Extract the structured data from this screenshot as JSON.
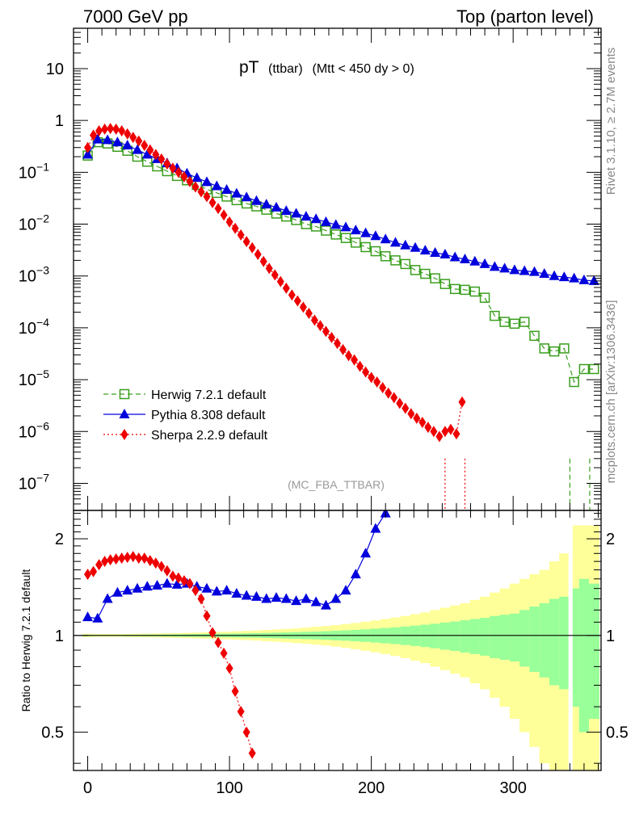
{
  "header": {
    "left": "7000 GeV pp",
    "right": "Top (parton level)"
  },
  "side_labels": {
    "rivet": "Rivet 3.1.10, ≥ 2.7M events",
    "mcplots": "mcplots.cern.ch [arXiv:1306.3436]"
  },
  "chart_data": [
    {
      "type": "scatter",
      "panel": "main",
      "title": "pT",
      "subtitle": "(ttbar)",
      "selection": "(Mtt < 450 dy > 0)",
      "watermark": "(MC_FBA_TTBAR)",
      "yscale": "log",
      "xlim": [
        -10,
        362
      ],
      "ylim": [
        3e-08,
        60
      ],
      "yticks": [
        10,
        1,
        0.1,
        0.01,
        0.001,
        0.0001,
        1e-05,
        1e-06,
        1e-07
      ],
      "ytick_labels": [
        {
          "m": "10",
          "e": ""
        },
        {
          "m": "1",
          "e": ""
        },
        {
          "m": "10",
          "e": "−1"
        },
        {
          "m": "10",
          "e": "−2"
        },
        {
          "m": "10",
          "e": "−3"
        },
        {
          "m": "10",
          "e": "−4"
        },
        {
          "m": "10",
          "e": "−5"
        },
        {
          "m": "10",
          "e": "−6"
        },
        {
          "m": "10",
          "e": "−7"
        }
      ],
      "legend_position": "bottom-left",
      "series": [
        {
          "name": "Herwig 7.2.1 default",
          "color": "#3a9e1e",
          "marker": "open-square",
          "line": "dashed",
          "x": [
            0,
            7,
            14,
            21,
            28,
            35,
            42,
            49,
            56,
            63,
            70,
            77,
            84,
            91,
            98,
            105,
            112,
            119,
            126,
            133,
            140,
            147,
            154,
            161,
            168,
            175,
            182,
            189,
            196,
            203,
            210,
            217,
            224,
            231,
            238,
            245,
            252,
            259,
            266,
            273,
            280,
            287,
            294,
            301,
            308,
            315,
            322,
            329,
            336,
            343,
            350,
            357
          ],
          "y": [
            0.21,
            0.38,
            0.36,
            0.31,
            0.26,
            0.2,
            0.16,
            0.13,
            0.105,
            0.085,
            0.07,
            0.057,
            0.047,
            0.04,
            0.034,
            0.029,
            0.025,
            0.022,
            0.019,
            0.016,
            0.014,
            0.012,
            0.01,
            0.009,
            0.0075,
            0.0063,
            0.0054,
            0.0044,
            0.0036,
            0.003,
            0.0024,
            0.002,
            0.0017,
            0.0013,
            0.0011,
            0.0009,
            0.0007,
            0.00056,
            0.00054,
            0.0005,
            0.00038,
            0.00017,
            0.00013,
            0.00012,
            0.00013,
            7e-05,
            4e-05,
            3.5e-05,
            4e-05,
            9e-06,
            1.6e-05,
            1.6e-05
          ]
        },
        {
          "name": "Pythia 8.308 default",
          "color": "#0000dd",
          "marker": "triangle",
          "line": "solid",
          "x": [
            0,
            7,
            14,
            21,
            28,
            35,
            42,
            49,
            56,
            63,
            70,
            77,
            84,
            91,
            98,
            105,
            112,
            119,
            126,
            133,
            140,
            147,
            154,
            161,
            168,
            175,
            182,
            189,
            196,
            203,
            210,
            217,
            224,
            231,
            238,
            245,
            252,
            259,
            266,
            273,
            280,
            287,
            294,
            301,
            308,
            315,
            322,
            329,
            336,
            343,
            350,
            357
          ],
          "y": [
            0.22,
            0.43,
            0.42,
            0.38,
            0.33,
            0.27,
            0.22,
            0.18,
            0.15,
            0.12,
            0.095,
            0.078,
            0.065,
            0.054,
            0.046,
            0.039,
            0.033,
            0.028,
            0.024,
            0.021,
            0.018,
            0.016,
            0.014,
            0.0125,
            0.011,
            0.0097,
            0.0087,
            0.0076,
            0.0067,
            0.0059,
            0.0051,
            0.0044,
            0.0039,
            0.0035,
            0.0031,
            0.0028,
            0.0026,
            0.0023,
            0.0021,
            0.0019,
            0.0017,
            0.0015,
            0.0014,
            0.0013,
            0.00125,
            0.0012,
            0.0011,
            0.001,
            0.00095,
            0.0009,
            0.00083,
            0.0008
          ]
        },
        {
          "name": "Sherpa 2.2.9 default",
          "color": "#ee0000",
          "marker": "diamond",
          "line": "dotted",
          "x": [
            0,
            4,
            8,
            12,
            16,
            20,
            24,
            28,
            32,
            36,
            40,
            44,
            48,
            52,
            56,
            60,
            64,
            68,
            72,
            76,
            80,
            84,
            88,
            92,
            96,
            100,
            104,
            108,
            112,
            116,
            120,
            124,
            128,
            132,
            136,
            140,
            144,
            148,
            152,
            156,
            160,
            164,
            168,
            172,
            176,
            180,
            184,
            188,
            192,
            196,
            200,
            204,
            208,
            212,
            216,
            220,
            224,
            228,
            232,
            236,
            240,
            244,
            248,
            252,
            256,
            260,
            264
          ],
          "y": [
            0.3,
            0.52,
            0.63,
            0.68,
            0.7,
            0.68,
            0.63,
            0.55,
            0.47,
            0.4,
            0.33,
            0.27,
            0.22,
            0.18,
            0.145,
            0.12,
            0.1,
            0.082,
            0.066,
            0.052,
            0.042,
            0.034,
            0.026,
            0.02,
            0.015,
            0.011,
            0.0083,
            0.0062,
            0.0046,
            0.0035,
            0.0026,
            0.0019,
            0.0014,
            0.00105,
            0.00078,
            0.00058,
            0.00043,
            0.00033,
            0.00025,
            0.00019,
            0.00014,
            0.00011,
            8.5e-05,
            6.5e-05,
            5e-05,
            3.8e-05,
            2.9e-05,
            2.4e-05,
            1.8e-05,
            1.4e-05,
            1.1e-05,
            9e-06,
            7e-06,
            5.5e-06,
            4.5e-06,
            3.5e-06,
            2.8e-06,
            2.2e-06,
            1.8e-06,
            1.5e-06,
            1.2e-06,
            1e-06,
            8e-07,
            1e-06,
            1.1e-06,
            9e-07,
            3.7e-06
          ]
        }
      ]
    },
    {
      "type": "scatter",
      "panel": "ratio",
      "ylabel": "Ratio to Herwig 7.2.1 default",
      "xlim": [
        -10,
        362
      ],
      "ylim": [
        0.38,
        2.45
      ],
      "yscale": "log",
      "yticks": [
        0.5,
        1,
        2
      ],
      "ytick_labels": [
        "0.5",
        "1",
        "2"
      ],
      "xticks": [
        0,
        100,
        200,
        300
      ],
      "xtick_labels": [
        "0",
        "100",
        "200",
        "300"
      ],
      "band_x": [
        0,
        7,
        14,
        21,
        28,
        35,
        42,
        49,
        56,
        63,
        70,
        77,
        84,
        91,
        98,
        105,
        112,
        119,
        126,
        133,
        140,
        147,
        154,
        161,
        168,
        175,
        182,
        189,
        196,
        203,
        210,
        217,
        224,
        231,
        238,
        245,
        252,
        259,
        266,
        273,
        280,
        287,
        294,
        301,
        308,
        315,
        322,
        329,
        336,
        343,
        350,
        357
      ],
      "band_inner": [
        0.005,
        0.004,
        0.004,
        0.004,
        0.005,
        0.005,
        0.006,
        0.006,
        0.007,
        0.008,
        0.009,
        0.01,
        0.011,
        0.012,
        0.013,
        0.014,
        0.015,
        0.016,
        0.018,
        0.02,
        0.022,
        0.024,
        0.026,
        0.028,
        0.031,
        0.034,
        0.037,
        0.041,
        0.045,
        0.05,
        0.055,
        0.06,
        0.066,
        0.073,
        0.08,
        0.088,
        0.097,
        0.105,
        0.115,
        0.125,
        0.135,
        0.15,
        0.16,
        0.17,
        0.2,
        0.23,
        0.26,
        0.3,
        0.32,
        0.4,
        0.5,
        0.45
      ],
      "band_outer": [
        0.012,
        0.01,
        0.01,
        0.01,
        0.011,
        0.012,
        0.013,
        0.014,
        0.016,
        0.017,
        0.019,
        0.021,
        0.023,
        0.025,
        0.027,
        0.03,
        0.033,
        0.036,
        0.04,
        0.044,
        0.048,
        0.053,
        0.058,
        0.064,
        0.07,
        0.077,
        0.085,
        0.094,
        0.104,
        0.114,
        0.125,
        0.137,
        0.15,
        0.165,
        0.18,
        0.2,
        0.22,
        0.24,
        0.26,
        0.29,
        0.32,
        0.36,
        0.4,
        0.45,
        0.5,
        0.55,
        0.6,
        0.7,
        0.8,
        1.2,
        1.2,
        1.2
      ],
      "series": [
        {
          "name": "Pythia 8.308 default",
          "color": "#0000dd",
          "x": [
            0,
            7,
            14,
            21,
            28,
            35,
            42,
            49,
            56,
            63,
            70,
            77,
            84,
            91,
            98,
            105,
            112,
            119,
            126,
            133,
            140,
            147,
            154,
            161,
            168,
            175,
            182,
            189,
            196,
            203,
            210
          ],
          "y": [
            1.14,
            1.13,
            1.3,
            1.36,
            1.38,
            1.4,
            1.42,
            1.43,
            1.45,
            1.44,
            1.45,
            1.42,
            1.4,
            1.37,
            1.38,
            1.35,
            1.33,
            1.32,
            1.3,
            1.31,
            1.3,
            1.28,
            1.3,
            1.27,
            1.24,
            1.3,
            1.38,
            1.55,
            1.8,
            2.15,
            2.4
          ]
        },
        {
          "name": "Sherpa 2.2.9 default",
          "color": "#ee0000",
          "x": [
            0,
            4,
            8,
            12,
            16,
            20,
            24,
            28,
            32,
            36,
            40,
            44,
            48,
            52,
            56,
            60,
            64,
            68,
            72,
            76,
            80,
            84,
            88,
            92,
            96,
            100,
            104,
            108,
            112,
            116
          ],
          "y": [
            1.55,
            1.58,
            1.66,
            1.7,
            1.72,
            1.73,
            1.74,
            1.75,
            1.76,
            1.74,
            1.74,
            1.71,
            1.68,
            1.64,
            1.59,
            1.53,
            1.51,
            1.48,
            1.45,
            1.38,
            1.3,
            1.15,
            1.02,
            0.95,
            0.88,
            0.79,
            0.67,
            0.58,
            0.5,
            0.43
          ]
        }
      ]
    }
  ]
}
